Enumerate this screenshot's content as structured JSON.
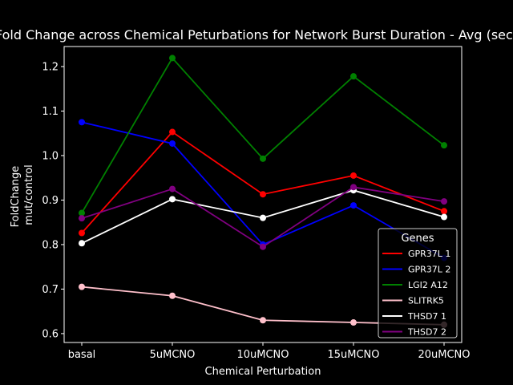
{
  "chart_data": {
    "type": "line",
    "title": "Fold Change across Chemical Peturbations for Network Burst Duration - Avg (sec)",
    "xlabel": "Chemical Perturbation",
    "ylabel": [
      "FoldChange",
      "mut/control"
    ],
    "categories": [
      "basal",
      "5uMCNO",
      "10uMCNO",
      "15uMCNO",
      "20uMCNO"
    ],
    "ylim": [
      0.58,
      1.245
    ],
    "yticks": [
      "0.6",
      "0.7",
      "0.8",
      "0.9",
      "1.0",
      "1.1",
      "1.2"
    ],
    "grid": false,
    "legend": {
      "title": "Genes",
      "position": "bottom-right"
    },
    "series": [
      {
        "name": "GPR37L 1",
        "color": "#ff0000",
        "values": [
          0.826,
          1.053,
          0.913,
          0.955,
          0.875
        ]
      },
      {
        "name": "GPR37L 2",
        "color": "#0000ff",
        "values": [
          1.075,
          1.027,
          0.8,
          0.888,
          0.77
        ]
      },
      {
        "name": "LGI2 A12",
        "color": "#008000",
        "values": [
          0.871,
          1.219,
          0.993,
          1.178,
          1.023
        ]
      },
      {
        "name": "SLITRK5",
        "color": "#ffc0cb",
        "values": [
          0.705,
          0.685,
          0.63,
          0.625,
          0.62
        ]
      },
      {
        "name": "THSD7 1",
        "color": "#ffffff",
        "values": [
          0.803,
          0.902,
          0.86,
          0.922,
          0.862
        ]
      },
      {
        "name": "THSD7 2",
        "color": "#800080",
        "values": [
          0.859,
          0.925,
          0.795,
          0.929,
          0.897
        ]
      }
    ]
  }
}
